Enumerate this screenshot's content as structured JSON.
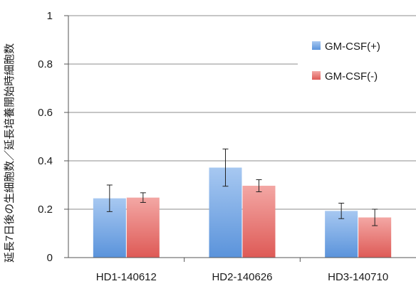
{
  "chart_data": {
    "type": "bar",
    "title": "",
    "xlabel": "",
    "ylabel": "延長7日後の生細胞数／延長培養開始時細胞数",
    "ylim": [
      0,
      1
    ],
    "yticks": [
      "0",
      "0.2",
      "0.4",
      "0.6",
      "0.8",
      "1"
    ],
    "ytick_values": [
      0,
      0.2,
      0.4,
      0.6,
      0.8,
      1
    ],
    "grid": "horizontal",
    "legend_position": "top-right",
    "categories": [
      "HD1-140612",
      "HD2-140626",
      "HD3-140710"
    ],
    "series": [
      {
        "name": "GM-CSF(+)",
        "color": "#5f9be6",
        "values": [
          0.245,
          0.372,
          0.193
        ],
        "error": [
          0.055,
          0.077,
          0.032
        ]
      },
      {
        "name": "GM-CSF(-)",
        "color": "#ea5f5a",
        "values": [
          0.248,
          0.297,
          0.166
        ],
        "error": [
          0.02,
          0.025,
          0.034
        ]
      }
    ]
  }
}
